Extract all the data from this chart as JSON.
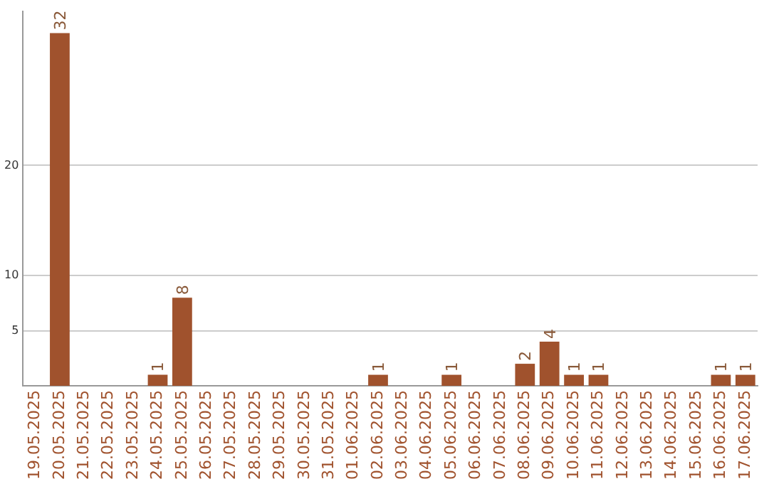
{
  "chart_data": {
    "type": "bar",
    "categories": [
      "19.05.2025",
      "20.05.2025",
      "21.05.2025",
      "22.05.2025",
      "23.05.2025",
      "24.05.2025",
      "25.05.2025",
      "26.05.2025",
      "27.05.2025",
      "28.05.2025",
      "29.05.2025",
      "30.05.2025",
      "31.05.2025",
      "01.06.2025",
      "02.06.2025",
      "03.06.2025",
      "04.06.2025",
      "05.06.2025",
      "06.06.2025",
      "07.06.2025",
      "08.06.2025",
      "09.06.2025",
      "10.06.2025",
      "11.06.2025",
      "12.06.2025",
      "13.06.2025",
      "14.06.2025",
      "15.06.2025",
      "16.06.2025",
      "17.06.2025"
    ],
    "values": [
      0,
      32,
      0,
      0,
      0,
      1,
      8,
      0,
      0,
      0,
      0,
      0,
      0,
      0,
      1,
      0,
      0,
      1,
      0,
      0,
      2,
      4,
      1,
      1,
      0,
      0,
      0,
      0,
      1,
      1
    ],
    "value_labels": [
      null,
      "32",
      null,
      null,
      null,
      "1",
      "8",
      null,
      null,
      null,
      null,
      null,
      null,
      null,
      "1",
      null,
      null,
      "1",
      null,
      null,
      "2",
      "4",
      "1",
      "1",
      null,
      null,
      null,
      null,
      "1",
      "1"
    ],
    "color": "#a0522d",
    "ylim": [
      0,
      34
    ],
    "yticks": [
      5,
      10,
      20
    ],
    "grid": "y",
    "legend": false
  }
}
